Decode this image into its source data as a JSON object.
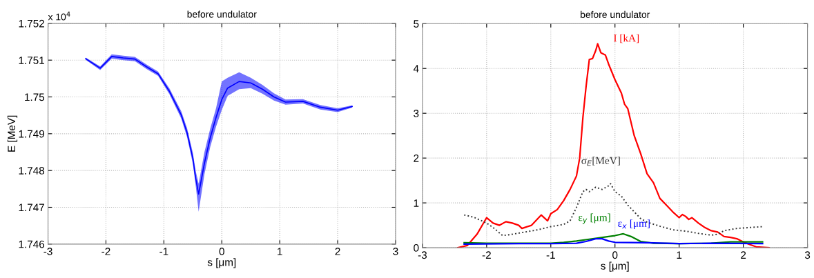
{
  "chart_data": [
    {
      "type": "line",
      "title": "before undulator",
      "xlabel": "s [μm]",
      "ylabel": "E [MeV]",
      "annotations": [
        "x 10$^{4}$"
      ],
      "xlim": [
        -3,
        3
      ],
      "xticks": [
        -3,
        -2,
        -1,
        0,
        1,
        2,
        3
      ],
      "ylim": [
        1.746,
        1.752
      ],
      "yticks": [
        1.746,
        1.747,
        1.748,
        1.749,
        1.75,
        1.751,
        1.752
      ],
      "grid": true,
      "legend": false,
      "marker": "none",
      "line_style": "solid",
      "series": [
        {
          "color": "#0000ff",
          "x": [
            -2.35,
            -2.1,
            -1.9,
            -1.7,
            -1.5,
            -1.3,
            -1.1,
            -0.9,
            -0.7,
            -0.6,
            -0.5,
            -0.45,
            -0.4,
            -0.3,
            -0.2,
            -0.1,
            0,
            0.1,
            0.3,
            0.5,
            0.7,
            0.9,
            1.1,
            1.4,
            1.7,
            2.0,
            2.25
          ],
          "values": [
            1.75104,
            1.75078,
            1.7511,
            1.75106,
            1.75103,
            1.75082,
            1.75063,
            1.75014,
            1.74951,
            1.74903,
            1.74833,
            1.74778,
            1.74736,
            1.7482,
            1.74889,
            1.74944,
            1.74993,
            1.75024,
            1.75042,
            1.75038,
            1.75021,
            1.75,
            1.74986,
            1.74988,
            1.74972,
            1.74964,
            1.74974
          ],
          "lower": [
            1.75101,
            1.75073,
            1.75104,
            1.751,
            1.75097,
            1.75076,
            1.75057,
            1.75006,
            1.74941,
            1.74891,
            1.74818,
            1.74758,
            1.74688,
            1.7479,
            1.74864,
            1.74919,
            1.74965,
            1.75003,
            1.75021,
            1.75024,
            1.75009,
            1.7499,
            1.74979,
            1.74982,
            1.74966,
            1.74959,
            1.74971
          ],
          "upper": [
            1.75107,
            1.75083,
            1.75116,
            1.75112,
            1.75109,
            1.75088,
            1.75069,
            1.75022,
            1.74961,
            1.74915,
            1.74848,
            1.74798,
            1.74764,
            1.7485,
            1.74914,
            1.74969,
            1.75042,
            1.75052,
            1.75067,
            1.75052,
            1.75033,
            1.7501,
            1.74993,
            1.74994,
            1.74978,
            1.74969,
            1.74977
          ]
        }
      ]
    },
    {
      "type": "line",
      "title": "before undulator",
      "xlabel": "s [μm]",
      "xlim": [
        -3,
        3
      ],
      "xticks": [
        -3,
        -2,
        -1,
        0,
        1,
        2,
        3
      ],
      "ylim": [
        0,
        5
      ],
      "yticks": [
        0,
        1,
        2,
        3,
        4,
        5
      ],
      "grid": true,
      "legend": false,
      "marker": "none",
      "series": [
        {
          "name": "I [kA]",
          "color": "#ff0000",
          "line_style": "solid",
          "x": [
            -2.45,
            -2.3,
            -2.15,
            -2.0,
            -1.9,
            -1.8,
            -1.7,
            -1.6,
            -1.5,
            -1.45,
            -1.3,
            -1.15,
            -1.05,
            -1.0,
            -0.9,
            -0.8,
            -0.7,
            -0.6,
            -0.55,
            -0.5,
            -0.45,
            -0.4,
            -0.35,
            -0.3,
            -0.27,
            -0.22,
            -0.15,
            -0.1,
            0,
            0.1,
            0.15,
            0.2,
            0.3,
            0.4,
            0.5,
            0.6,
            0.7,
            0.8,
            0.9,
            1.0,
            1.05,
            1.1,
            1.15,
            1.2,
            1.3,
            1.4,
            1.5,
            1.6,
            1.7,
            1.8,
            1.9,
            2.0,
            2.1,
            2.2,
            2.4
          ],
          "values": [
            0,
            0.05,
            0.3,
            0.67,
            0.55,
            0.5,
            0.58,
            0.55,
            0.5,
            0.43,
            0.5,
            0.73,
            0.6,
            0.76,
            0.85,
            1.05,
            1.3,
            1.6,
            2.0,
            2.9,
            3.6,
            4.2,
            4.22,
            4.4,
            4.55,
            4.35,
            4.3,
            4.1,
            3.75,
            3.45,
            3.2,
            3.1,
            2.5,
            2.1,
            1.65,
            1.45,
            1.1,
            0.95,
            0.8,
            0.67,
            0.74,
            0.7,
            0.63,
            0.67,
            0.55,
            0.45,
            0.38,
            0.35,
            0.25,
            0.23,
            0.2,
            0.13,
            0.07,
            0.02,
            0
          ]
        },
        {
          "name": "σ$_{E}$[MeV]",
          "color": "#333333",
          "line_style": "dotted",
          "x": [
            -2.35,
            -2.2,
            -2.0,
            -1.9,
            -1.75,
            -1.6,
            -1.4,
            -1.2,
            -1.0,
            -0.8,
            -0.7,
            -0.6,
            -0.5,
            -0.45,
            -0.4,
            -0.3,
            -0.2,
            -0.1,
            -0.07,
            0,
            0.1,
            0.2,
            0.3,
            0.4,
            0.5,
            0.7,
            0.9,
            1.1,
            1.3,
            1.5,
            1.6,
            1.7,
            1.9,
            2.1,
            2.3
          ],
          "values": [
            0.73,
            0.68,
            0.55,
            0.45,
            0.27,
            0.3,
            0.35,
            0.4,
            0.47,
            0.52,
            0.6,
            0.9,
            1.25,
            1.3,
            1.25,
            1.35,
            1.3,
            1.38,
            1.43,
            1.25,
            1.15,
            0.95,
            0.8,
            0.65,
            0.57,
            0.48,
            0.4,
            0.37,
            0.32,
            0.28,
            0.3,
            0.38,
            0.43,
            0.45,
            0.47
          ]
        },
        {
          "name": "ε$_{y}$ [μm]",
          "color": "#008000",
          "line_style": "solid",
          "x": [
            -2.35,
            -2.0,
            -1.5,
            -1.0,
            -0.8,
            -0.6,
            -0.4,
            -0.25,
            -0.1,
            0.0,
            0.13,
            0.25,
            0.4,
            0.6,
            1.0,
            1.5,
            1.8,
            2.3
          ],
          "values": [
            0.11,
            0.1,
            0.1,
            0.1,
            0.12,
            0.15,
            0.19,
            0.22,
            0.25,
            0.27,
            0.31,
            0.25,
            0.14,
            0.1,
            0.09,
            0.1,
            0.13,
            0.13
          ]
        },
        {
          "name": "ε$_{x}$ [μm]",
          "color": "#0000ff",
          "line_style": "solid",
          "x": [
            -2.35,
            -1.5,
            -1.0,
            -0.6,
            -0.45,
            -0.3,
            -0.2,
            -0.1,
            0.0,
            0.5,
            1.0,
            1.5,
            2.3
          ],
          "values": [
            0.08,
            0.09,
            0.09,
            0.1,
            0.14,
            0.2,
            0.2,
            0.15,
            0.12,
            0.11,
            0.09,
            0.1,
            0.09
          ]
        }
      ]
    }
  ]
}
